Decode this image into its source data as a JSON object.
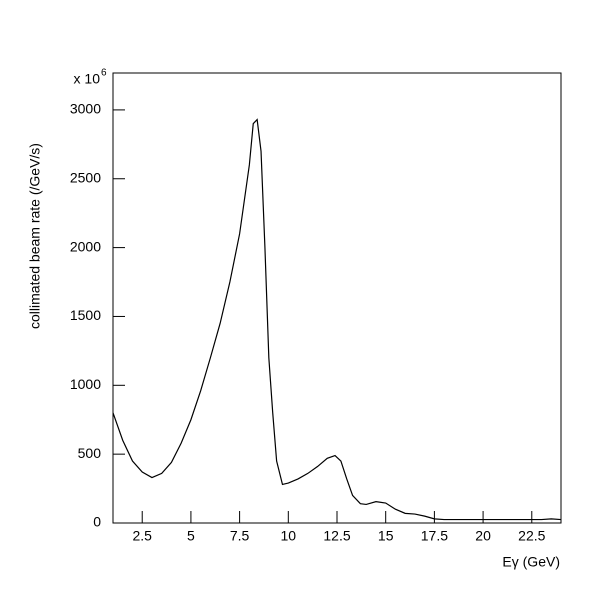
{
  "chart_data": {
    "type": "line",
    "x_label": "Eγ (GeV)",
    "y_label": "collimated beam rate (/GeV/s)",
    "y_scale_base": "x 10",
    "y_scale_exponent": "6",
    "x": [
      1,
      1.5,
      2,
      2.5,
      3,
      3.5,
      4,
      4.5,
      5,
      5.5,
      6,
      6.5,
      7,
      7.5,
      8,
      8.2,
      8.4,
      8.6,
      8.8,
      9.0,
      9.2,
      9.4,
      9.7,
      10,
      10.5,
      11,
      11.5,
      12,
      12.4,
      12.7,
      13,
      13.3,
      13.7,
      14,
      14.5,
      15,
      15.5,
      16,
      16.5,
      17,
      17.5,
      18,
      19,
      20,
      21,
      22,
      23,
      23.5,
      24
    ],
    "series": [
      {
        "color": "#000000",
        "values": [
          800,
          600,
          450,
          370,
          330,
          360,
          440,
          580,
          750,
          960,
          1200,
          1450,
          1750,
          2100,
          2600,
          2900,
          2930,
          2700,
          2000,
          1200,
          800,
          450,
          280,
          290,
          320,
          360,
          410,
          470,
          490,
          450,
          320,
          200,
          140,
          135,
          155,
          145,
          100,
          70,
          65,
          50,
          30,
          25,
          25,
          25,
          25,
          25,
          25,
          30,
          25
        ]
      }
    ],
    "xlim": [
      1,
      24
    ],
    "ylim": [
      0,
      3268
    ],
    "xticks": [
      2.5,
      5,
      7.5,
      10,
      12.5,
      15,
      17.5,
      20,
      22.5
    ],
    "yticks": [
      0,
      500,
      1000,
      1500,
      2000,
      2500,
      3000
    ],
    "grid": false
  }
}
